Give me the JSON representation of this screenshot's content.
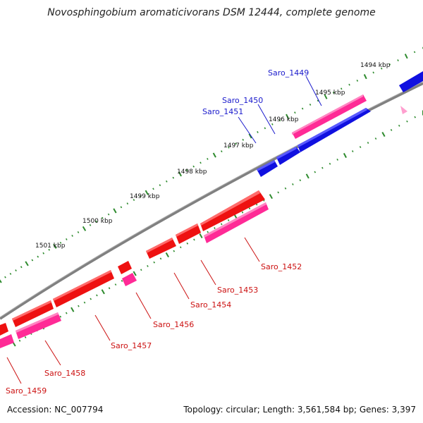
{
  "title": "Novosphingobium aromaticivorans DSM 12444, complete genome",
  "footer": {
    "accession": "Accession: NC_007794",
    "summary": "Topology: circular; Length: 3,561,584 bp; Genes: 3,397"
  },
  "colors": {
    "backbone": "#7a7a7a",
    "forward_cds": "#1010e0",
    "forward_gene": "#ff2a96",
    "reverse_cds": "#ee1111",
    "reverse_gene": "#ff2a96",
    "tick": "#2e8b2e",
    "forward_label": "#1a1acc",
    "reverse_label": "#cc1111"
  },
  "kbp_ticks": [
    "1494 kbp",
    "1495 kbp",
    "1496 kbp",
    "1497 kbp",
    "1498 kbp",
    "1499 kbp",
    "1500 kbp",
    "1501 kbp"
  ],
  "forward_genes": [
    "Saro_1449",
    "Saro_1450",
    "Saro_1451"
  ],
  "reverse_genes": [
    "Saro_1452",
    "Saro_1453",
    "Saro_1454",
    "Saro_1456",
    "Saro_1457",
    "Saro_1458",
    "Saro_1459"
  ]
}
